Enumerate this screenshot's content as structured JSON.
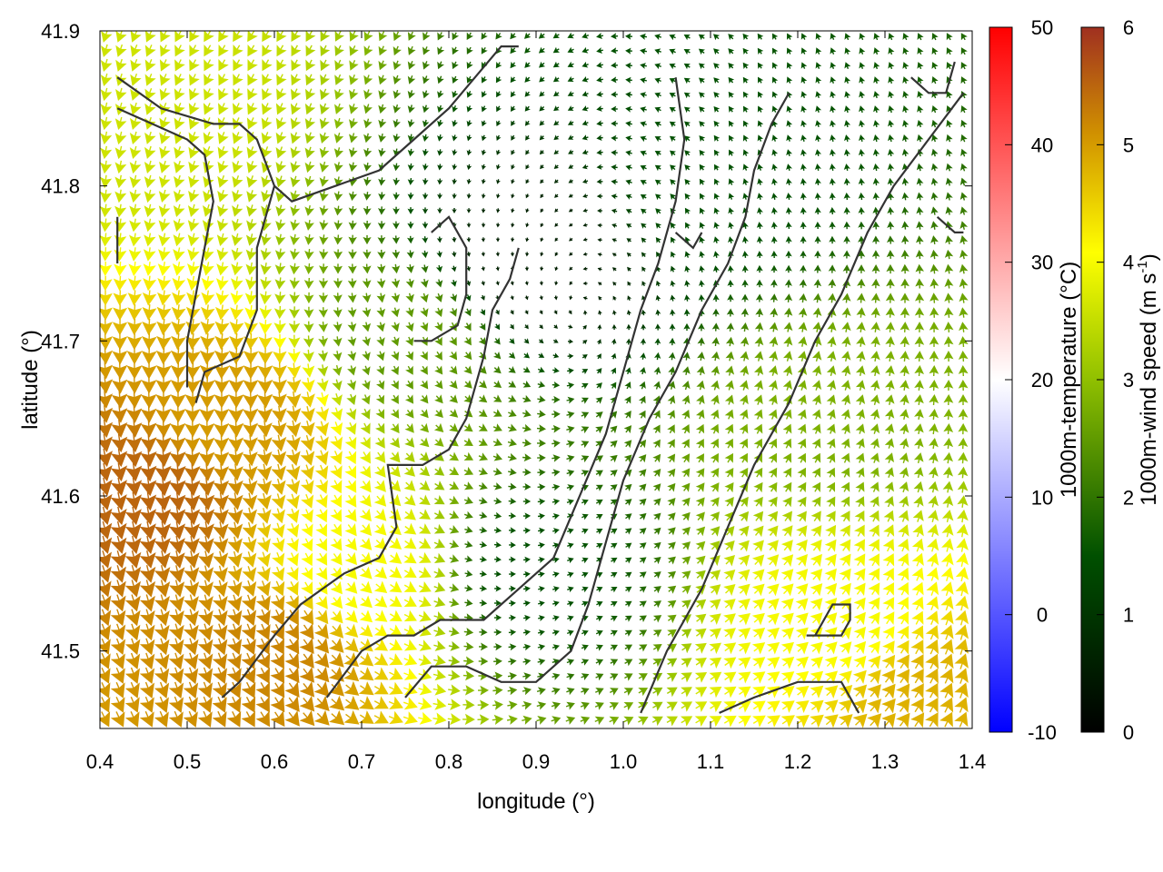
{
  "chart_data": {
    "type": "vector-field",
    "xlabel": "longitude (°)",
    "ylabel": "latitude (°)",
    "xlim": [
      0.4,
      1.4
    ],
    "ylim": [
      41.45,
      41.9
    ],
    "xticks": [
      "0.4",
      "0.5",
      "0.6",
      "0.7",
      "0.8",
      "0.9",
      "1.0",
      "1.1",
      "1.2",
      "1.3",
      "1.4"
    ],
    "yticks": [
      "41.5",
      "41.6",
      "41.7",
      "41.8",
      "41.9"
    ],
    "grid": false,
    "colorbars": [
      {
        "label": "1000m-temperature (°C)",
        "range": [
          -10,
          50
        ],
        "ticks": [
          "50",
          "40",
          "30",
          "20",
          "10",
          "0",
          "-10"
        ],
        "colors": [
          "#0000ff",
          "#ffffff",
          "#ff0000"
        ]
      },
      {
        "label": "1000m-wind speed (m s-1)",
        "label_main": "1000m-wind speed (m s",
        "label_sup": "-1",
        "label_end": ")",
        "range": [
          0,
          6
        ],
        "ticks": [
          "6",
          "5",
          "4",
          "3",
          "2",
          "1",
          "0"
        ],
        "colors": [
          "#000000",
          "#005000",
          "#90c000",
          "#ffff00",
          "#d09000",
          "#a03020"
        ]
      }
    ],
    "wind_speed_samples": [
      {
        "lon": 0.45,
        "lat": 41.85,
        "speed": 3.6
      },
      {
        "lon": 0.45,
        "lat": 41.6,
        "speed": 5.5
      },
      {
        "lon": 0.55,
        "lat": 41.65,
        "speed": 5.0
      },
      {
        "lon": 0.6,
        "lat": 41.5,
        "speed": 5.2
      },
      {
        "lon": 0.7,
        "lat": 41.55,
        "speed": 4.0
      },
      {
        "lon": 0.75,
        "lat": 41.7,
        "speed": 2.5
      },
      {
        "lon": 0.9,
        "lat": 41.75,
        "speed": 0.6
      },
      {
        "lon": 0.9,
        "lat": 41.55,
        "speed": 1.5
      },
      {
        "lon": 1.1,
        "lat": 41.8,
        "speed": 1.5
      },
      {
        "lon": 1.25,
        "lat": 41.65,
        "speed": 2.8
      },
      {
        "lon": 1.25,
        "lat": 41.52,
        "speed": 4.0
      },
      {
        "lon": 1.35,
        "lat": 41.47,
        "speed": 4.8
      }
    ],
    "terrain_contours": [
      [
        [
          0.42,
          41.87
        ],
        [
          0.47,
          41.85
        ],
        [
          0.53,
          41.84
        ],
        [
          0.56,
          41.84
        ],
        [
          0.58,
          41.83
        ],
        [
          0.6,
          41.8
        ],
        [
          0.62,
          41.79
        ],
        [
          0.67,
          41.8
        ],
        [
          0.72,
          41.81
        ],
        [
          0.76,
          41.83
        ],
        [
          0.8,
          41.85
        ],
        [
          0.83,
          41.87
        ],
        [
          0.86,
          41.89
        ],
        [
          0.88,
          41.89
        ]
      ],
      [
        [
          0.42,
          41.85
        ],
        [
          0.46,
          41.84
        ],
        [
          0.5,
          41.83
        ],
        [
          0.52,
          41.82
        ],
        [
          0.53,
          41.79
        ],
        [
          0.52,
          41.76
        ],
        [
          0.51,
          41.73
        ],
        [
          0.5,
          41.7
        ],
        [
          0.5,
          41.67
        ]
      ],
      [
        [
          0.6,
          41.8
        ],
        [
          0.58,
          41.76
        ],
        [
          0.58,
          41.72
        ],
        [
          0.56,
          41.69
        ],
        [
          0.52,
          41.68
        ],
        [
          0.51,
          41.66
        ]
      ],
      [
        [
          0.42,
          41.75
        ],
        [
          0.42,
          41.78
        ]
      ],
      [
        [
          0.54,
          41.47
        ],
        [
          0.56,
          41.48
        ],
        [
          0.6,
          41.51
        ],
        [
          0.63,
          41.53
        ],
        [
          0.68,
          41.55
        ],
        [
          0.72,
          41.56
        ],
        [
          0.74,
          41.58
        ],
        [
          0.73,
          41.62
        ],
        [
          0.77,
          41.62
        ],
        [
          0.8,
          41.63
        ],
        [
          0.82,
          41.65
        ],
        [
          0.84,
          41.69
        ],
        [
          0.85,
          41.72
        ],
        [
          0.87,
          41.74
        ],
        [
          0.88,
          41.76
        ]
      ],
      [
        [
          0.66,
          41.47
        ],
        [
          0.7,
          41.5
        ],
        [
          0.73,
          41.51
        ],
        [
          0.76,
          41.51
        ],
        [
          0.79,
          41.52
        ],
        [
          0.84,
          41.52
        ],
        [
          0.88,
          41.54
        ],
        [
          0.92,
          41.56
        ],
        [
          0.95,
          41.6
        ],
        [
          0.98,
          41.64
        ],
        [
          1.0,
          41.68
        ],
        [
          1.02,
          41.72
        ],
        [
          1.04,
          41.75
        ],
        [
          1.06,
          41.79
        ],
        [
          1.07,
          41.83
        ],
        [
          1.06,
          41.87
        ]
      ],
      [
        [
          0.75,
          41.47
        ],
        [
          0.78,
          41.49
        ],
        [
          0.82,
          41.49
        ],
        [
          0.86,
          41.48
        ],
        [
          0.9,
          41.48
        ],
        [
          0.94,
          41.5
        ],
        [
          0.96,
          41.53
        ],
        [
          0.98,
          41.57
        ],
        [
          1.0,
          41.61
        ],
        [
          1.03,
          41.65
        ],
        [
          1.06,
          41.68
        ],
        [
          1.09,
          41.72
        ],
        [
          1.12,
          41.75
        ],
        [
          1.14,
          41.78
        ],
        [
          1.15,
          41.81
        ],
        [
          1.17,
          41.84
        ],
        [
          1.19,
          41.86
        ]
      ],
      [
        [
          1.02,
          41.46
        ],
        [
          1.05,
          41.5
        ],
        [
          1.09,
          41.54
        ],
        [
          1.12,
          41.58
        ],
        [
          1.15,
          41.62
        ],
        [
          1.19,
          41.66
        ],
        [
          1.22,
          41.7
        ],
        [
          1.25,
          41.73
        ],
        [
          1.28,
          41.77
        ],
        [
          1.31,
          41.8
        ],
        [
          1.35,
          41.83
        ],
        [
          1.39,
          41.86
        ]
      ],
      [
        [
          1.11,
          41.46
        ],
        [
          1.15,
          41.47
        ],
        [
          1.2,
          41.48
        ],
        [
          1.25,
          41.48
        ],
        [
          1.27,
          41.46
        ]
      ],
      [
        [
          1.21,
          41.51
        ],
        [
          1.25,
          41.51
        ],
        [
          1.26,
          41.52
        ],
        [
          1.26,
          41.53
        ],
        [
          1.24,
          41.53
        ],
        [
          1.22,
          41.51
        ]
      ],
      [
        [
          1.33,
          41.87
        ],
        [
          1.35,
          41.86
        ],
        [
          1.37,
          41.86
        ],
        [
          1.38,
          41.88
        ]
      ],
      [
        [
          1.36,
          41.78
        ],
        [
          1.38,
          41.77
        ],
        [
          1.39,
          41.77
        ]
      ],
      [
        [
          0.78,
          41.77
        ],
        [
          0.8,
          41.78
        ],
        [
          0.82,
          41.76
        ],
        [
          0.82,
          41.73
        ],
        [
          0.81,
          41.71
        ],
        [
          0.78,
          41.7
        ],
        [
          0.76,
          41.7
        ]
      ],
      [
        [
          1.06,
          41.77
        ],
        [
          1.08,
          41.76
        ],
        [
          1.09,
          41.77
        ]
      ]
    ]
  }
}
